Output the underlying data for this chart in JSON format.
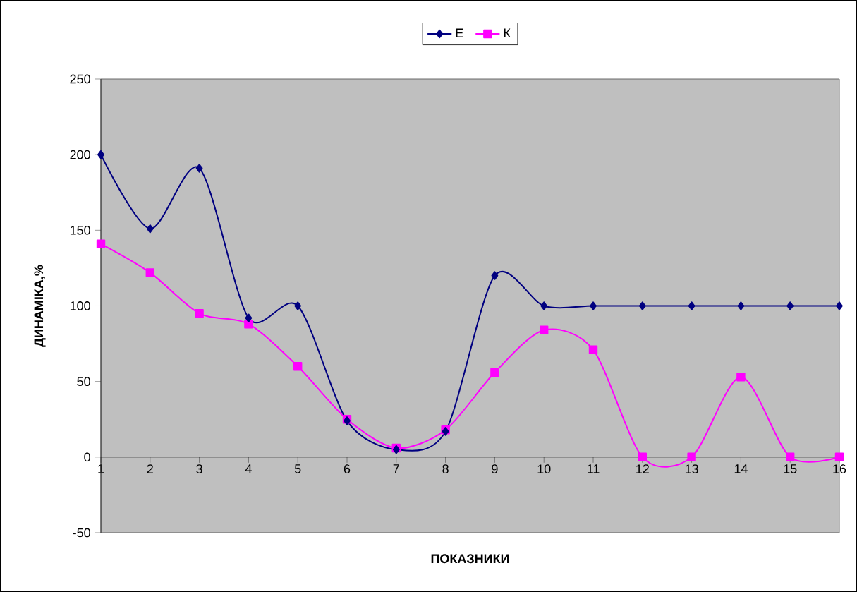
{
  "chart_data": {
    "type": "line",
    "xlabel": "ПОКАЗНИКИ",
    "ylabel": "ДИНАМІКА,%",
    "categories": [
      "1",
      "2",
      "3",
      "4",
      "5",
      "6",
      "7",
      "8",
      "9",
      "10",
      "11",
      "12",
      "13",
      "14",
      "15",
      "16"
    ],
    "series": [
      {
        "name": "Е",
        "color": "#000080",
        "marker": "diamond",
        "values": [
          200,
          151,
          191,
          92,
          100,
          24,
          5,
          17,
          120,
          100,
          100,
          100,
          100,
          100,
          100,
          100
        ]
      },
      {
        "name": "К",
        "color": "#ff00ff",
        "marker": "square",
        "values": [
          141,
          122,
          95,
          88,
          60,
          25,
          6,
          18,
          56,
          84,
          71,
          0,
          0,
          53,
          0,
          0
        ]
      }
    ],
    "ylim": [
      -50,
      250
    ],
    "yticks": [
      -50,
      0,
      50,
      100,
      150,
      200,
      250
    ],
    "grid": false,
    "legend": "top",
    "line_style": "solid"
  }
}
